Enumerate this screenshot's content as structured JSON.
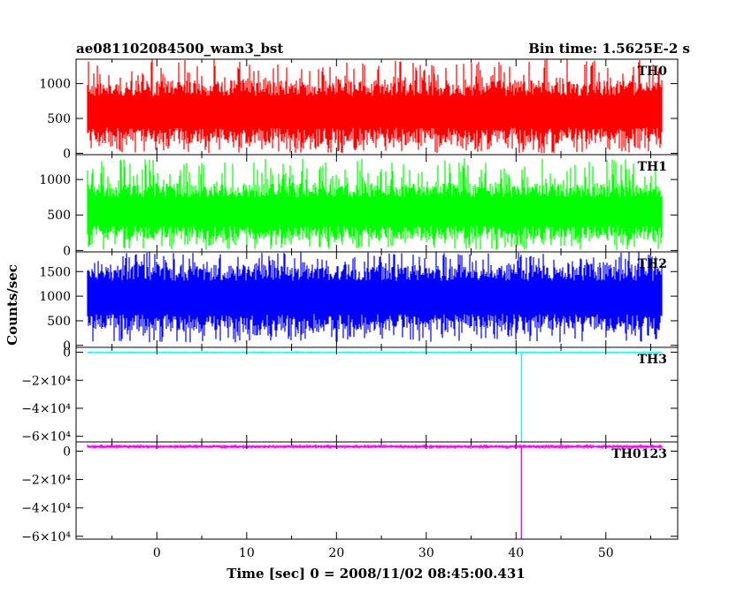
{
  "chart_data": {
    "type": "line",
    "title": "ae081102084500_wam3_bst",
    "subtitle": "Bin time: 1.5625E-2 s",
    "xlabel": "Time [sec] 0 = 2008/11/02 08:45:00.431",
    "ylabel": "Counts/sec",
    "xlim": [
      -9,
      58
    ],
    "xticks": [
      0,
      10,
      20,
      30,
      40,
      50
    ],
    "x_range_data": [
      -7.7,
      56.2
    ],
    "grid": false,
    "panels": [
      {
        "name": "TH0",
        "color": "#ff0000",
        "ylim": [
          -20,
          1350
        ],
        "yticks": [
          {
            "v": 0,
            "label": "0"
          },
          {
            "v": 500,
            "label": "500"
          },
          {
            "v": 1000,
            "label": "1000"
          }
        ],
        "baseline": 550,
        "band_low": 140,
        "band_high": 1050,
        "spike_low": 0,
        "spike_high": 1350
      },
      {
        "name": "TH1",
        "color": "#00ff00",
        "ylim": [
          -20,
          1350
        ],
        "yticks": [
          {
            "v": 0,
            "label": "0"
          },
          {
            "v": 500,
            "label": "500"
          },
          {
            "v": 1000,
            "label": "1000"
          }
        ],
        "baseline": 500,
        "band_low": 150,
        "band_high": 950,
        "spike_low": 10,
        "spike_high": 1300
      },
      {
        "name": "TH2",
        "color": "#0000ff",
        "ylim": [
          -40,
          1900
        ],
        "yticks": [
          {
            "v": 0,
            "label": "0"
          },
          {
            "v": 500,
            "label": "500"
          },
          {
            "v": 1000,
            "label": "1000"
          },
          {
            "v": 1500,
            "label": "1500"
          }
        ],
        "baseline": 950,
        "band_low": 300,
        "band_high": 1650,
        "spike_low": 60,
        "spike_high": 1900
      },
      {
        "name": "TH3",
        "color": "#00ffff",
        "ylim": [
          -64000,
          3500
        ],
        "yticks": [
          {
            "v": 0,
            "label": "0"
          },
          {
            "v": -20000,
            "label": "−2×10⁴"
          },
          {
            "v": -40000,
            "label": "−4×10⁴"
          },
          {
            "v": -60000,
            "label": "−6×10⁴"
          }
        ],
        "baseline": 0,
        "band_low": -400,
        "band_high": 400,
        "spike_low": -800,
        "spike_high": 800,
        "dip": {
          "x": 40.6,
          "value": -64000
        }
      },
      {
        "name": "TH0123",
        "color": "#ff00ff",
        "ylim": [
          -62000,
          6500
        ],
        "yticks": [
          {
            "v": 0,
            "label": "0"
          },
          {
            "v": -20000,
            "label": "−2×10⁴"
          },
          {
            "v": -40000,
            "label": "−4×10⁴"
          },
          {
            "v": -60000,
            "label": "−6×10⁴"
          }
        ],
        "baseline": 3200,
        "band_low": 2200,
        "band_high": 4200,
        "spike_low": 1600,
        "spike_high": 4800,
        "dip": {
          "x": 40.6,
          "value": -62000
        }
      }
    ]
  }
}
